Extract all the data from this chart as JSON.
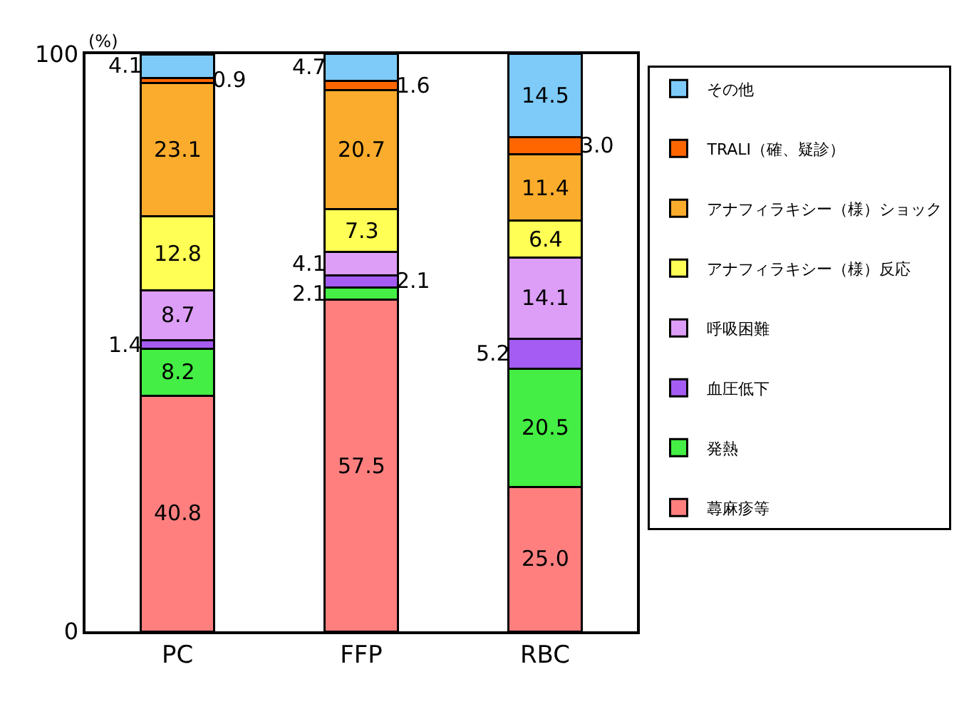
{
  "chart_data": {
    "type": "bar",
    "stacked": true,
    "ylabel": "(%)",
    "categories": [
      "PC",
      "FFP",
      "RBC"
    ],
    "ylim": [
      0,
      100
    ],
    "yticks": [
      0,
      100
    ],
    "legend": "right",
    "series": [
      {
        "name": "蕁麻疹等",
        "color": "#ff7f7f",
        "values": [
          40.8,
          57.5,
          25.0
        ],
        "value_labels": [
          "40.8",
          "57.5",
          "25.0"
        ]
      },
      {
        "name": "発熱",
        "color": "#44ee44",
        "values": [
          8.2,
          2.1,
          20.5
        ],
        "value_labels": [
          "8.2",
          "2.1",
          "20.5"
        ]
      },
      {
        "name": "血圧低下",
        "color": "#a45cf2",
        "values": [
          1.4,
          2.1,
          5.2
        ],
        "value_labels": [
          "1.4",
          "2.1",
          "5.2"
        ]
      },
      {
        "name": "呼吸困難",
        "color": "#dd9ef7",
        "values": [
          8.7,
          4.1,
          14.1
        ],
        "value_labels": [
          "8.7",
          "4.1",
          "14.1"
        ]
      },
      {
        "name": "アナフィラキシー（様）反応",
        "color": "#ffff55",
        "values": [
          12.8,
          7.3,
          6.4
        ],
        "value_labels": [
          "12.8",
          "7.3",
          "6.4"
        ]
      },
      {
        "name": "アナフィラキシー（様）ショック",
        "color": "#fbac2c",
        "values": [
          23.1,
          20.7,
          11.4
        ],
        "value_labels": [
          "23.1",
          "20.7",
          "11.4"
        ]
      },
      {
        "name": "TRALI（確、疑診）",
        "color": "#ff6600",
        "values": [
          0.9,
          1.6,
          3.0
        ],
        "value_labels": [
          "0.9",
          "1.6",
          "3.0"
        ]
      },
      {
        "name": "その他",
        "color": "#7ecbfa",
        "values": [
          4.1,
          4.7,
          14.5
        ],
        "value_labels": [
          "4.1",
          "4.7",
          "14.5"
        ]
      }
    ]
  }
}
